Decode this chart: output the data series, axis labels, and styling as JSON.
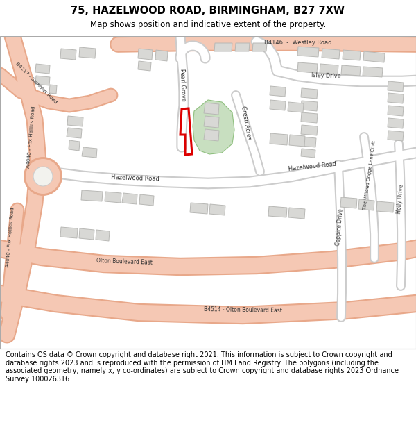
{
  "title_line1": "75, HAZELWOOD ROAD, BIRMINGHAM, B27 7XW",
  "title_line2": "Map shows position and indicative extent of the property.",
  "footer_text": "Contains OS data © Crown copyright and database right 2021. This information is subject to Crown copyright and database rights 2023 and is reproduced with the permission of HM Land Registry. The polygons (including the associated geometry, namely x, y co-ordinates) are subject to Crown copyright and database rights 2023 Ordnance Survey 100026316.",
  "bg_color": "#f2f2ee",
  "road_color": "#ffffff",
  "major_road_color": "#f5c8b4",
  "major_road_outline": "#e8a88a",
  "building_color": "#d8d8d5",
  "building_outline": "#b8b8b5",
  "green_area_color": "#c8dfc0",
  "red_plot_color": "#dd0000",
  "header_bg": "#ffffff",
  "footer_bg": "#ffffff",
  "map_border_color": "#aaaaaa",
  "road_outline": "#cccccc"
}
